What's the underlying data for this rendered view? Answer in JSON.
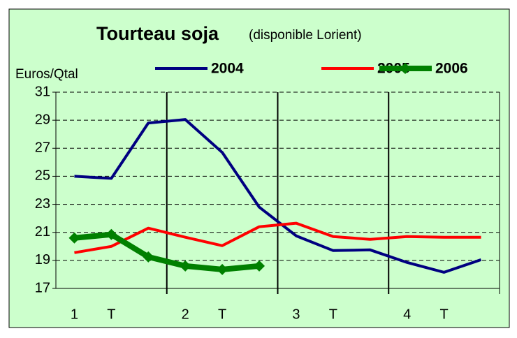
{
  "chart_data": {
    "type": "line",
    "title": "Tourteau soja",
    "subtitle": "(disponible Lorient)",
    "y_label": "Euros/Qtal",
    "categories": [
      "1",
      "T",
      null,
      "2",
      "T",
      null,
      "3",
      "T",
      null,
      "4",
      "T",
      null
    ],
    "series": [
      {
        "name": "2004",
        "color": "#000080",
        "values": [
          25.0,
          24.85,
          28.8,
          29.05,
          26.7,
          22.8,
          20.75,
          19.7,
          19.75,
          18.85,
          18.15,
          19.05
        ]
      },
      {
        "name": "2005",
        "color": "#ff0000",
        "values": [
          19.55,
          20.0,
          21.3,
          20.65,
          20.05,
          21.4,
          21.65,
          20.7,
          20.5,
          20.7,
          20.65,
          20.65
        ]
      },
      {
        "name": "2006",
        "color": "#008000",
        "marker": "diamond",
        "values": [
          20.6,
          20.85,
          19.25,
          18.6,
          18.35,
          18.6,
          null,
          null,
          null,
          null,
          null,
          null
        ]
      }
    ],
    "ylim": [
      17,
      31
    ],
    "yticks": [
      17,
      19,
      21,
      23,
      25,
      27,
      29,
      31
    ],
    "grid": true
  }
}
